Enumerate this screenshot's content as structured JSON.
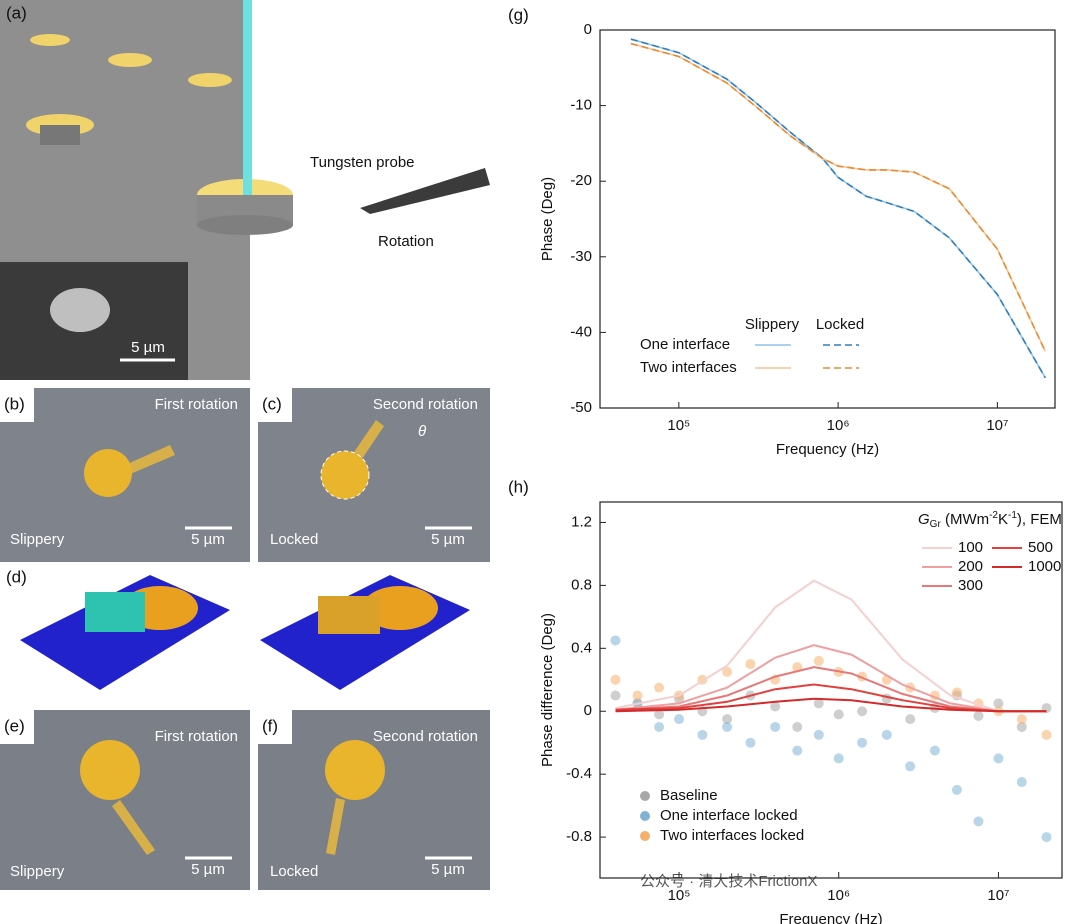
{
  "panels": {
    "a": {
      "label": "(a)",
      "probe": "Tungsten probe",
      "rotation": "Rotation",
      "scale": "5 µm"
    },
    "b": {
      "label": "(b)",
      "title": "First rotation",
      "state": "Slippery",
      "scale": "5 µm"
    },
    "c": {
      "label": "(c)",
      "title": "Second rotation",
      "state": "Locked",
      "scale": "5 µm",
      "angle": "θ"
    },
    "d": {
      "label": "(d)"
    },
    "e": {
      "label": "(e)",
      "title": "First rotation",
      "state": "Slippery",
      "scale": "5 µm"
    },
    "f": {
      "label": "(f)",
      "title": "Second rotation",
      "state": "Locked",
      "scale": "5 µm"
    }
  },
  "watermark": "公众号 · 清大技术FrictionX",
  "chart_data": [
    {
      "type": "line",
      "label": "(g)",
      "x_label": "Frequency (Hz)",
      "y_label": "Phase (Deg)",
      "xscale": "log",
      "xlim": [
        32000,
        23000000
      ],
      "xticks": [
        {
          "value": 100000,
          "label": "10⁵"
        },
        {
          "value": 1000000,
          "label": "10⁶"
        },
        {
          "value": 10000000,
          "label": "10⁷"
        }
      ],
      "ylim": [
        -50,
        0
      ],
      "yticks": [
        0,
        -10,
        -20,
        -30,
        -40,
        -50
      ],
      "x": [
        50000,
        100000,
        200000,
        300000,
        500000,
        800000,
        1000000,
        1500000,
        2000000,
        3000000,
        5000000,
        10000000,
        20000000
      ],
      "series": [
        {
          "name": "One interface",
          "group": "Slippery",
          "color": "#8cc4ea",
          "dashed": false,
          "values": [
            -1.2,
            -3,
            -6.5,
            -9.5,
            -13.5,
            -17,
            -19.5,
            -22,
            -22.8,
            -24,
            -27.5,
            -35,
            -46
          ]
        },
        {
          "name": "One interface",
          "group": "Locked",
          "color": "#2f7fbf",
          "dashed": true,
          "values": [
            -1.2,
            -3,
            -6.5,
            -9.5,
            -13.5,
            -17,
            -19.5,
            -22,
            -22.8,
            -24,
            -27.5,
            -35,
            -46
          ]
        },
        {
          "name": "Two interfaces",
          "group": "Slippery",
          "color": "#f6c391",
          "dashed": false,
          "values": [
            -1.8,
            -3.5,
            -7,
            -10,
            -14,
            -17,
            -18,
            -18.5,
            -18.5,
            -18.8,
            -21,
            -29,
            -42.5
          ]
        },
        {
          "name": "Two interfaces",
          "group": "Locked",
          "color": "#e8892e",
          "dashed": true,
          "values": [
            -1.8,
            -3.5,
            -7,
            -10,
            -14,
            -17,
            -18,
            -18.5,
            -18.5,
            -18.8,
            -21,
            -29,
            -42.5
          ]
        }
      ]
    },
    {
      "type": "scatter",
      "label": "(h)",
      "x_label": "Frequency (Hz)",
      "y_label": "Phase difference (Deg)",
      "xscale": "log",
      "xlim": [
        32000,
        25000000
      ],
      "xticks": [
        {
          "value": 100000,
          "label": "10⁵"
        },
        {
          "value": 1000000,
          "label": "10⁶"
        },
        {
          "value": 10000000,
          "label": "10⁷"
        }
      ],
      "ylim": [
        -1.06,
        1.33
      ],
      "yticks": [
        1.2,
        0.8,
        0.4,
        0,
        -0.4,
        -0.8
      ],
      "x": [
        40000,
        55000,
        75000,
        100000,
        140000,
        200000,
        280000,
        400000,
        550000,
        750000,
        1000000,
        1400000,
        2000000,
        2800000,
        4000000,
        5500000,
        7500000,
        10000000,
        14000000,
        20000000
      ],
      "series": [
        {
          "name": "Baseline",
          "color": "#a8a8a8",
          "values": [
            0.1,
            0.05,
            -0.02,
            0.08,
            0.0,
            -0.05,
            0.1,
            0.03,
            -0.1,
            0.05,
            -0.02,
            0.0,
            0.08,
            -0.05,
            0.02,
            0.1,
            -0.03,
            0.05,
            -0.1,
            0.02
          ]
        },
        {
          "name": "One interface locked",
          "color": "#7fb3d5",
          "values": [
            0.45,
            0.05,
            -0.1,
            -0.05,
            -0.15,
            -0.1,
            -0.2,
            -0.1,
            -0.25,
            -0.15,
            -0.3,
            -0.2,
            -0.15,
            -0.35,
            -0.25,
            -0.5,
            -0.7,
            -0.3,
            -0.45,
            -0.8
          ]
        },
        {
          "name": "Two interfaces locked",
          "color": "#f5b06b",
          "values": [
            0.2,
            0.1,
            0.15,
            0.1,
            0.2,
            0.25,
            0.3,
            0.2,
            0.28,
            0.32,
            0.25,
            0.22,
            0.2,
            0.15,
            0.1,
            0.12,
            0.05,
            0.0,
            -0.05,
            -0.15
          ]
        }
      ],
      "fem_title": {
        "symbol": "G",
        "subscript": "Gr",
        "unit_start": " (MWm",
        "exp1": "-2",
        "unit_mid": "K",
        "exp2": "-1",
        "unit_end": "), FEM"
      },
      "fem_x": [
        40000,
        100000,
        200000,
        400000,
        700000,
        1200000,
        2500000,
        5000000,
        10000000,
        20000000
      ],
      "fem_lines": [
        {
          "name": "100",
          "color": "#f6cfcf",
          "values": [
            0.02,
            0.1,
            0.29,
            0.66,
            0.83,
            0.71,
            0.33,
            0.1,
            0,
            0
          ]
        },
        {
          "name": "200",
          "color": "#ef9f9f",
          "values": [
            0.01,
            0.05,
            0.15,
            0.34,
            0.42,
            0.36,
            0.17,
            0.05,
            0,
            0
          ]
        },
        {
          "name": "300",
          "color": "#e77878",
          "values": [
            0.01,
            0.03,
            0.1,
            0.22,
            0.28,
            0.24,
            0.11,
            0.03,
            0,
            0
          ]
        },
        {
          "name": "500",
          "color": "#e2403c",
          "values": [
            0.01,
            0.02,
            0.06,
            0.14,
            0.17,
            0.14,
            0.07,
            0.02,
            0,
            0
          ]
        },
        {
          "name": "1000",
          "color": "#d22b2b",
          "values": [
            0.0,
            0.01,
            0.03,
            0.06,
            0.08,
            0.07,
            0.03,
            0.01,
            0,
            0
          ]
        }
      ]
    }
  ]
}
